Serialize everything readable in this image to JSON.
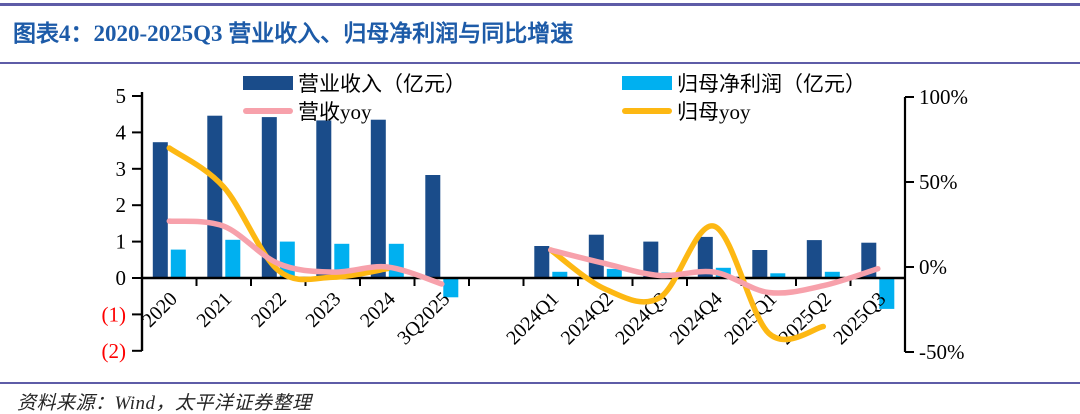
{
  "header": {
    "title": "图表4：2020-2025Q3 营业收入、归母净利润与同比增速"
  },
  "legend": {
    "items": [
      {
        "label": "营业收入（亿元）",
        "type": "bar",
        "color": "#1a4c8a"
      },
      {
        "label": "归母净利润（亿元）",
        "type": "bar",
        "color": "#00b0f0"
      },
      {
        "label": "营收yoy",
        "type": "line",
        "color": "#f7a1ab"
      },
      {
        "label": "归母yoy",
        "type": "line",
        "color": "#fdb813"
      }
    ]
  },
  "footer": {
    "source": "资料来源：Wind，太平洋证券整理"
  },
  "colors": {
    "rule_purple": "#5e5ca7",
    "title_blue": "#1d5ba8",
    "revenue_bar": "#1a4c8a",
    "profit_bar": "#00b0f0",
    "revenue_yoy_line": "#f7a1ab",
    "profit_yoy_line": "#fdb813",
    "axis_black": "#000000",
    "negative_tick_red": "#fe0000"
  },
  "chart_data": {
    "type": "bar",
    "subtype": "combo bar+smooth-line, dual axis",
    "title": "2020-2025Q3 营业收入、归母净利润与同比增速",
    "categories": [
      "2020",
      "2021",
      "2022",
      "2023",
      "2024",
      "3Q2025",
      "",
      "2024Q1",
      "2024Q2",
      "2024Q3",
      "2024Q4",
      "2025Q1",
      "2025Q2",
      "2025Q3"
    ],
    "series": [
      {
        "name": "营业收入（亿元）",
        "type": "bar",
        "axis": "left",
        "color": "#1a4c8a",
        "values": [
          3.73,
          4.46,
          4.42,
          4.33,
          4.35,
          2.83,
          null,
          0.88,
          1.19,
          1.0,
          1.13,
          0.77,
          1.04,
          0.97
        ]
      },
      {
        "name": "归母净利润（亿元）",
        "type": "bar",
        "axis": "left",
        "color": "#00b0f0",
        "values": [
          0.78,
          1.05,
          1.0,
          0.94,
          0.94,
          -0.53,
          null,
          0.17,
          0.25,
          0.15,
          0.28,
          0.13,
          0.17,
          -0.85
        ]
      },
      {
        "name": "归母yoy",
        "type": "line",
        "axis": "right",
        "color": "#fdb813",
        "unit": "%",
        "values": [
          70,
          47,
          -2,
          -6,
          -1,
          null,
          null,
          10,
          -13,
          -18,
          24,
          -39,
          -35,
          null
        ]
      },
      {
        "name": "营收yoy",
        "type": "line",
        "axis": "right",
        "color": "#f7a1ab",
        "unit": "%",
        "values": [
          27,
          24,
          2,
          -3,
          0,
          -10,
          null,
          10,
          2,
          -5,
          -3,
          -15,
          -11,
          -1
        ]
      }
    ],
    "left_axis": {
      "labels": [
        "5",
        "4",
        "3",
        "2",
        "1",
        "0",
        "(1)",
        "(2)"
      ],
      "values": [
        5,
        4,
        3,
        2,
        1,
        0,
        -1,
        -2
      ],
      "range": [
        -2,
        5
      ],
      "negative_label_color": "#fe0000"
    },
    "right_axis": {
      "labels": [
        "100%",
        "50%",
        "0%",
        "-50%"
      ],
      "values": [
        100,
        50,
        0,
        -50
      ],
      "range": [
        -50,
        100
      ]
    },
    "grid": false,
    "legend_position": "top",
    "line_smoothing": true
  }
}
